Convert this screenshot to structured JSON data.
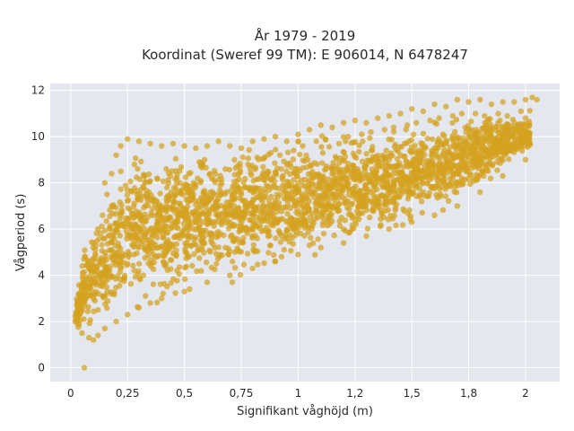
{
  "chart_data": {
    "type": "scatter",
    "title_lines": [
      "År 1979 - 2019",
      "Koordinat (Sweref 99 TM): E 906014, N 6478247"
    ],
    "xlabel": "Signifikant våghöjd (m)",
    "ylabel": "Vågperiod (s)",
    "xlim": [
      -0.09,
      2.15
    ],
    "ylim": [
      -0.6,
      12.3
    ],
    "xticks": [
      0,
      0.25,
      0.5,
      0.75,
      1,
      1.25,
      1.5,
      1.75,
      2
    ],
    "xtick_labels": [
      "0",
      "0,25",
      "0,5",
      "0,75",
      "1",
      "1,2",
      "1,5",
      "1,8",
      "2"
    ],
    "yticks": [
      0,
      2,
      4,
      6,
      8,
      10,
      12
    ],
    "ytick_labels": [
      "0",
      "2",
      "4",
      "6",
      "8",
      "10",
      "12"
    ],
    "grid": true,
    "legend": "none",
    "colors": {
      "points": "#d4a21e",
      "plot_bg": "#e5e7ef",
      "grid": "#ffffff"
    },
    "series": [
      {
        "points": [
          [
            0.06,
            0.0
          ],
          [
            0.02,
            2.0
          ],
          [
            0.03,
            1.9
          ],
          [
            0.05,
            3.1
          ],
          [
            0.08,
            4.3
          ],
          [
            0.1,
            5.4
          ],
          [
            0.12,
            6.0
          ],
          [
            0.14,
            6.6
          ],
          [
            0.16,
            7.5
          ],
          [
            0.18,
            8.4
          ],
          [
            0.2,
            9.2
          ],
          [
            0.22,
            9.6
          ],
          [
            0.25,
            9.9
          ],
          [
            0.3,
            9.8
          ],
          [
            0.35,
            9.7
          ],
          [
            0.4,
            9.6
          ],
          [
            0.45,
            9.7
          ],
          [
            0.5,
            9.6
          ],
          [
            0.55,
            9.5
          ],
          [
            0.6,
            9.6
          ],
          [
            0.65,
            9.8
          ],
          [
            0.7,
            9.6
          ],
          [
            0.75,
            9.5
          ],
          [
            0.8,
            9.8
          ],
          [
            0.85,
            9.9
          ],
          [
            0.9,
            10.0
          ],
          [
            0.95,
            9.8
          ],
          [
            1.0,
            10.1
          ],
          [
            1.05,
            10.3
          ],
          [
            1.1,
            10.5
          ],
          [
            1.15,
            10.4
          ],
          [
            1.2,
            10.6
          ],
          [
            1.25,
            10.7
          ],
          [
            1.3,
            10.6
          ],
          [
            1.35,
            10.8
          ],
          [
            1.4,
            10.9
          ],
          [
            1.45,
            11.0
          ],
          [
            1.5,
            11.2
          ],
          [
            1.55,
            11.1
          ],
          [
            1.6,
            11.4
          ],
          [
            1.65,
            11.3
          ],
          [
            1.7,
            11.6
          ],
          [
            1.75,
            11.5
          ],
          [
            1.8,
            11.6
          ],
          [
            1.85,
            11.4
          ],
          [
            1.9,
            11.5
          ],
          [
            1.95,
            11.5
          ],
          [
            2.0,
            11.6
          ],
          [
            2.03,
            11.7
          ],
          [
            2.05,
            11.6
          ],
          [
            0.05,
            1.5
          ],
          [
            0.08,
            1.3
          ],
          [
            0.1,
            1.2
          ],
          [
            0.12,
            1.4
          ],
          [
            0.15,
            1.7
          ],
          [
            0.2,
            2.0
          ],
          [
            0.25,
            2.3
          ],
          [
            0.3,
            2.6
          ],
          [
            0.35,
            2.8
          ],
          [
            0.4,
            3.0
          ],
          [
            0.5,
            3.3
          ],
          [
            0.6,
            3.7
          ],
          [
            0.7,
            4.0
          ],
          [
            0.8,
            4.3
          ],
          [
            0.9,
            4.6
          ],
          [
            1.0,
            4.9
          ],
          [
            1.1,
            5.2
          ],
          [
            1.2,
            5.4
          ],
          [
            1.3,
            5.7
          ],
          [
            1.4,
            6.0
          ],
          [
            1.5,
            6.3
          ],
          [
            1.6,
            6.6
          ],
          [
            1.7,
            7.0
          ],
          [
            1.8,
            7.6
          ],
          [
            1.9,
            8.3
          ],
          [
            2.0,
            9.0
          ],
          [
            0.05,
            2.5
          ],
          [
            0.07,
            3.5
          ],
          [
            0.1,
            3.0
          ],
          [
            0.15,
            4.0
          ],
          [
            0.2,
            5.0
          ],
          [
            0.25,
            4.5
          ],
          [
            0.3,
            5.5
          ],
          [
            0.35,
            6.0
          ],
          [
            0.4,
            6.5
          ],
          [
            0.45,
            7.0
          ],
          [
            0.5,
            6.0
          ],
          [
            0.55,
            6.8
          ],
          [
            0.6,
            7.2
          ],
          [
            0.65,
            6.5
          ],
          [
            0.7,
            7.0
          ],
          [
            0.75,
            7.5
          ],
          [
            0.8,
            7.0
          ],
          [
            0.85,
            7.4
          ],
          [
            0.9,
            7.8
          ],
          [
            0.95,
            7.5
          ],
          [
            1.0,
            8.0
          ],
          [
            1.05,
            7.8
          ],
          [
            1.1,
            8.2
          ],
          [
            1.15,
            8.4
          ],
          [
            1.2,
            8.3
          ],
          [
            1.25,
            8.6
          ],
          [
            1.3,
            8.8
          ],
          [
            1.35,
            8.9
          ],
          [
            1.4,
            9.0
          ],
          [
            1.45,
            9.2
          ],
          [
            1.5,
            9.3
          ],
          [
            1.55,
            9.4
          ],
          [
            1.6,
            9.5
          ],
          [
            1.65,
            9.7
          ],
          [
            1.7,
            9.9
          ],
          [
            1.75,
            10.0
          ],
          [
            1.8,
            10.2
          ],
          [
            1.85,
            10.3
          ],
          [
            1.9,
            10.4
          ],
          [
            1.95,
            10.6
          ],
          [
            2.0,
            10.8
          ],
          [
            0.15,
            8.0
          ],
          [
            0.18,
            7.0
          ],
          [
            0.22,
            8.5
          ],
          [
            0.28,
            8.8
          ],
          [
            0.32,
            7.8
          ],
          [
            0.38,
            8.2
          ],
          [
            0.42,
            8.6
          ],
          [
            0.48,
            8.0
          ],
          [
            0.52,
            8.4
          ],
          [
            0.58,
            8.8
          ],
          [
            0.62,
            8.2
          ],
          [
            0.68,
            8.6
          ],
          [
            0.72,
            9.0
          ],
          [
            0.78,
            8.8
          ],
          [
            0.82,
            9.1
          ],
          [
            0.88,
            9.3
          ],
          [
            0.92,
            9.2
          ],
          [
            0.98,
            9.4
          ],
          [
            1.02,
            9.6
          ],
          [
            1.08,
            9.8
          ],
          [
            1.12,
            9.9
          ],
          [
            1.18,
            9.7
          ],
          [
            1.22,
            10.0
          ],
          [
            1.28,
            10.1
          ],
          [
            1.32,
            10.2
          ],
          [
            1.38,
            10.3
          ],
          [
            1.42,
            10.4
          ],
          [
            1.48,
            10.5
          ],
          [
            1.52,
            10.6
          ],
          [
            1.58,
            10.7
          ],
          [
            1.62,
            10.8
          ],
          [
            1.68,
            10.9
          ],
          [
            1.72,
            11.0
          ],
          [
            1.78,
            11.0
          ],
          [
            1.82,
            10.9
          ],
          [
            1.88,
            11.0
          ],
          [
            1.92,
            10.9
          ],
          [
            1.98,
            11.1
          ],
          [
            0.12,
            2.5
          ],
          [
            0.18,
            3.2
          ],
          [
            0.22,
            3.8
          ],
          [
            0.28,
            4.2
          ],
          [
            0.32,
            4.0
          ],
          [
            0.38,
            4.8
          ],
          [
            0.42,
            5.2
          ],
          [
            0.48,
            5.6
          ],
          [
            0.52,
            4.8
          ],
          [
            0.58,
            5.4
          ],
          [
            0.62,
            5.8
          ],
          [
            0.68,
            5.2
          ],
          [
            0.72,
            5.6
          ],
          [
            0.78,
            6.0
          ],
          [
            0.82,
            5.6
          ],
          [
            0.88,
            6.2
          ],
          [
            0.92,
            6.4
          ],
          [
            0.98,
            6.0
          ],
          [
            1.02,
            6.6
          ],
          [
            1.08,
            6.8
          ],
          [
            1.12,
            7.0
          ],
          [
            1.18,
            6.8
          ],
          [
            1.22,
            7.2
          ],
          [
            1.28,
            7.4
          ],
          [
            1.32,
            7.6
          ],
          [
            1.38,
            7.4
          ],
          [
            1.42,
            7.8
          ],
          [
            1.48,
            8.0
          ],
          [
            1.52,
            8.2
          ],
          [
            1.58,
            8.4
          ],
          [
            1.62,
            8.6
          ],
          [
            1.68,
            8.8
          ],
          [
            1.72,
            9.0
          ],
          [
            1.78,
            9.2
          ],
          [
            1.82,
            9.4
          ],
          [
            1.88,
            9.6
          ],
          [
            1.92,
            9.8
          ]
        ]
      }
    ]
  }
}
